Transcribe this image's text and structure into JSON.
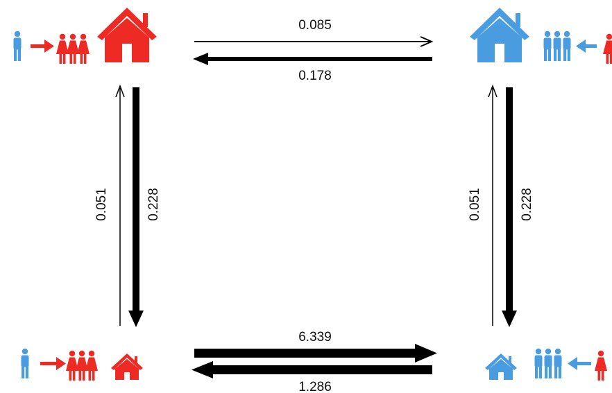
{
  "colors": {
    "red": "#ee2a24",
    "blue": "#4a9ce0",
    "arrow": "#000000"
  },
  "states": [
    {
      "id": "top-left",
      "house": "red",
      "house_size": "large",
      "migrant": "blue",
      "group": "red"
    },
    {
      "id": "top-right",
      "house": "blue",
      "house_size": "large",
      "migrant": "red",
      "group": "blue"
    },
    {
      "id": "bottom-left",
      "house": "red",
      "house_size": "small",
      "migrant": "blue",
      "group": "red"
    },
    {
      "id": "bottom-right",
      "house": "blue",
      "house_size": "small",
      "migrant": "red",
      "group": "blue"
    }
  ],
  "transitions": {
    "top_forward": {
      "from": "top-left",
      "to": "top-right",
      "rate": "0.085"
    },
    "top_backward": {
      "from": "top-right",
      "to": "top-left",
      "rate": "0.178"
    },
    "left_up": {
      "from": "bottom-left",
      "to": "top-left",
      "rate": "0.051"
    },
    "left_down": {
      "from": "top-left",
      "to": "bottom-left",
      "rate": "0.228"
    },
    "right_up": {
      "from": "bottom-right",
      "to": "top-right",
      "rate": "0.051"
    },
    "right_down": {
      "from": "top-right",
      "to": "bottom-right",
      "rate": "0.228"
    },
    "bottom_forward": {
      "from": "bottom-left",
      "to": "bottom-right",
      "rate": "6.339"
    },
    "bottom_backward": {
      "from": "bottom-right",
      "to": "bottom-left",
      "rate": "1.286"
    }
  }
}
